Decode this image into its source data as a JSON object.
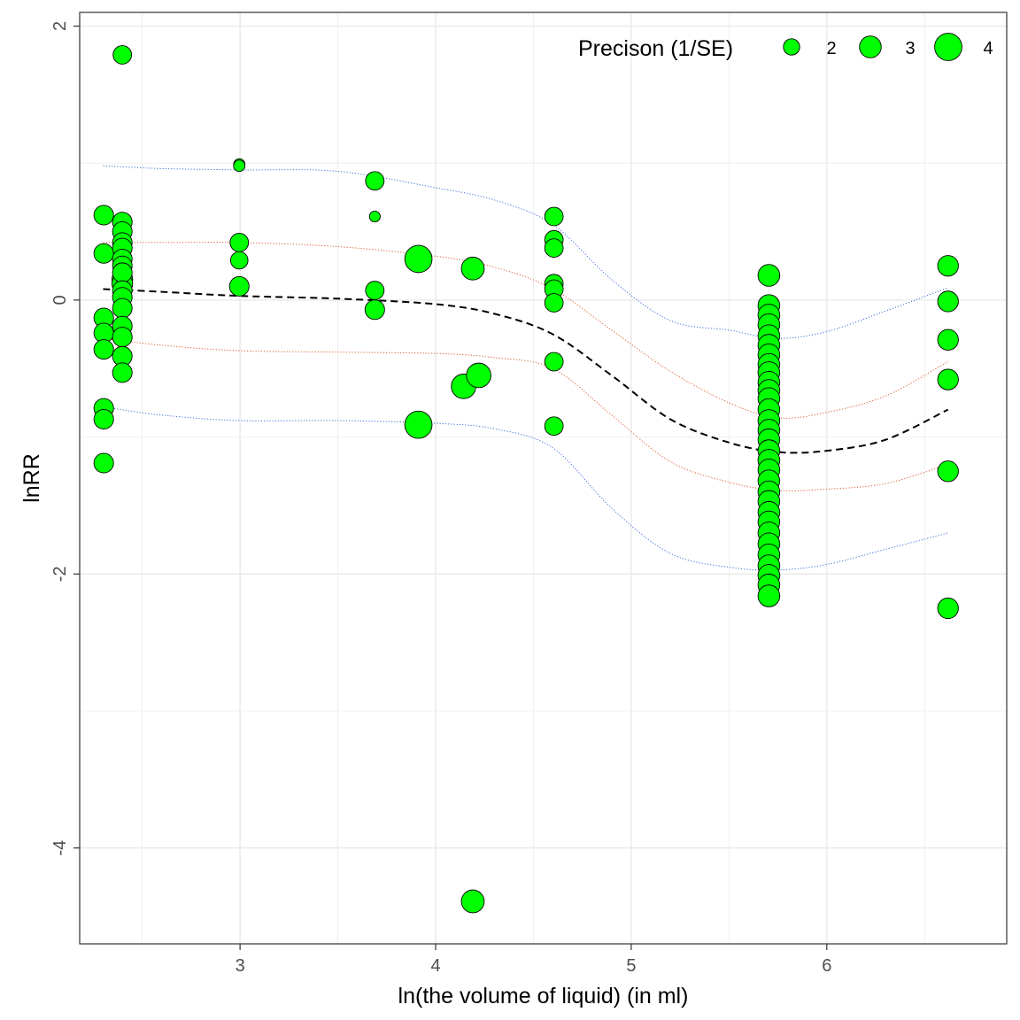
{
  "chart_data": {
    "type": "scatter",
    "title": "",
    "xlabel": "ln(the volume of liquid) (in ml)",
    "ylabel": "lnRR",
    "xlim": [
      2.18,
      6.92
    ],
    "ylim": [
      -4.7,
      2.1
    ],
    "x_ticks": [
      3,
      4,
      5,
      6
    ],
    "x_tick_labels": [
      "3",
      "4",
      "5",
      "6"
    ],
    "y_ticks": [
      -4,
      -2,
      0,
      2
    ],
    "y_tick_labels": [
      "-4",
      "-2",
      "0",
      "2"
    ],
    "grid": true,
    "legend": {
      "title": "Precison (1/SE)",
      "placement": "top-right",
      "entries": [
        {
          "label": "2",
          "precision": 2
        },
        {
          "label": "3",
          "precision": 3
        },
        {
          "label": "4",
          "precision": 4
        }
      ]
    },
    "colors": {
      "point_fill": "#00ff00",
      "point_stroke": "#000000",
      "fit_line": "#000000",
      "ci_band": "#d95f33",
      "pi_band": "#3a6fd8",
      "grid": "#ebebeb"
    },
    "points": [
      {
        "x": 2.303,
        "y": 0.62,
        "precision": 2.6
      },
      {
        "x": 2.303,
        "y": 0.34,
        "precision": 2.6
      },
      {
        "x": 2.303,
        "y": -0.13,
        "precision": 2.6
      },
      {
        "x": 2.303,
        "y": -0.24,
        "precision": 2.6
      },
      {
        "x": 2.303,
        "y": -0.36,
        "precision": 2.6
      },
      {
        "x": 2.303,
        "y": -0.79,
        "precision": 2.6
      },
      {
        "x": 2.303,
        "y": -0.87,
        "precision": 2.6
      },
      {
        "x": 2.303,
        "y": -1.19,
        "precision": 2.6
      },
      {
        "x": 2.398,
        "y": 1.79,
        "precision": 2.4
      },
      {
        "x": 2.398,
        "y": 0.57,
        "precision": 2.6
      },
      {
        "x": 2.398,
        "y": 0.5,
        "precision": 2.6
      },
      {
        "x": 2.398,
        "y": 0.42,
        "precision": 2.6
      },
      {
        "x": 2.398,
        "y": 0.38,
        "precision": 2.6
      },
      {
        "x": 2.398,
        "y": 0.3,
        "precision": 2.6
      },
      {
        "x": 2.398,
        "y": 0.25,
        "precision": 2.6
      },
      {
        "x": 2.398,
        "y": 0.2,
        "precision": 2.6
      },
      {
        "x": 2.398,
        "y": 0.15,
        "precision": 2.8
      },
      {
        "x": 2.398,
        "y": 0.12,
        "precision": 2.8
      },
      {
        "x": 2.398,
        "y": 0.07,
        "precision": 2.6
      },
      {
        "x": 2.398,
        "y": 0.02,
        "precision": 2.6
      },
      {
        "x": 2.398,
        "y": -0.06,
        "precision": 2.6
      },
      {
        "x": 2.398,
        "y": -0.19,
        "precision": 2.6
      },
      {
        "x": 2.398,
        "y": -0.27,
        "precision": 2.6
      },
      {
        "x": 2.398,
        "y": -0.41,
        "precision": 2.6
      },
      {
        "x": 2.398,
        "y": -0.53,
        "precision": 2.6
      },
      {
        "x": 2.996,
        "y": 0.99,
        "precision": 1.1
      },
      {
        "x": 2.996,
        "y": 0.98,
        "precision": 1.1
      },
      {
        "x": 2.996,
        "y": 0.42,
        "precision": 2.4
      },
      {
        "x": 2.996,
        "y": 0.29,
        "precision": 2.2
      },
      {
        "x": 2.996,
        "y": 0.1,
        "precision": 2.6
      },
      {
        "x": 3.689,
        "y": 0.87,
        "precision": 2.4
      },
      {
        "x": 3.689,
        "y": 0.61,
        "precision": 1.0
      },
      {
        "x": 3.689,
        "y": 0.07,
        "precision": 2.4
      },
      {
        "x": 3.689,
        "y": -0.07,
        "precision": 2.6
      },
      {
        "x": 3.912,
        "y": 0.3,
        "precision": 4.0
      },
      {
        "x": 3.912,
        "y": -0.91,
        "precision": 4.0
      },
      {
        "x": 4.143,
        "y": -0.63,
        "precision": 3.5
      },
      {
        "x": 4.19,
        "y": 0.23,
        "precision": 3.2
      },
      {
        "x": 4.19,
        "y": -4.39,
        "precision": 3.2
      },
      {
        "x": 4.22,
        "y": -0.55,
        "precision": 3.5
      },
      {
        "x": 4.605,
        "y": 0.61,
        "precision": 2.4
      },
      {
        "x": 4.605,
        "y": 0.44,
        "precision": 2.4
      },
      {
        "x": 4.605,
        "y": 0.38,
        "precision": 2.4
      },
      {
        "x": 4.605,
        "y": 0.12,
        "precision": 2.4
      },
      {
        "x": 4.605,
        "y": 0.08,
        "precision": 2.4
      },
      {
        "x": 4.605,
        "y": -0.02,
        "precision": 2.4
      },
      {
        "x": 4.605,
        "y": -0.45,
        "precision": 2.4
      },
      {
        "x": 4.605,
        "y": -0.92,
        "precision": 2.4
      },
      {
        "x": 5.704,
        "y": 0.18,
        "precision": 3.0
      },
      {
        "x": 5.704,
        "y": -0.04,
        "precision": 3.0
      },
      {
        "x": 5.704,
        "y": -0.11,
        "precision": 3.0
      },
      {
        "x": 5.704,
        "y": -0.18,
        "precision": 3.0
      },
      {
        "x": 5.704,
        "y": -0.26,
        "precision": 3.0
      },
      {
        "x": 5.704,
        "y": -0.33,
        "precision": 3.0
      },
      {
        "x": 5.704,
        "y": -0.4,
        "precision": 3.0
      },
      {
        "x": 5.704,
        "y": -0.47,
        "precision": 3.0
      },
      {
        "x": 5.704,
        "y": -0.53,
        "precision": 3.0
      },
      {
        "x": 5.704,
        "y": -0.6,
        "precision": 3.0
      },
      {
        "x": 5.704,
        "y": -0.66,
        "precision": 3.0
      },
      {
        "x": 5.704,
        "y": -0.72,
        "precision": 3.0
      },
      {
        "x": 5.704,
        "y": -0.8,
        "precision": 3.0
      },
      {
        "x": 5.704,
        "y": -0.88,
        "precision": 3.0
      },
      {
        "x": 5.704,
        "y": -0.95,
        "precision": 3.0
      },
      {
        "x": 5.704,
        "y": -1.02,
        "precision": 3.0
      },
      {
        "x": 5.704,
        "y": -1.1,
        "precision": 3.0
      },
      {
        "x": 5.704,
        "y": -1.17,
        "precision": 3.0
      },
      {
        "x": 5.704,
        "y": -1.24,
        "precision": 3.0
      },
      {
        "x": 5.704,
        "y": -1.32,
        "precision": 3.0
      },
      {
        "x": 5.704,
        "y": -1.4,
        "precision": 3.0
      },
      {
        "x": 5.704,
        "y": -1.47,
        "precision": 3.0
      },
      {
        "x": 5.704,
        "y": -1.55,
        "precision": 3.0
      },
      {
        "x": 5.704,
        "y": -1.62,
        "precision": 3.0
      },
      {
        "x": 5.704,
        "y": -1.7,
        "precision": 3.0
      },
      {
        "x": 5.704,
        "y": -1.78,
        "precision": 3.0
      },
      {
        "x": 5.704,
        "y": -1.86,
        "precision": 3.0
      },
      {
        "x": 5.704,
        "y": -1.94,
        "precision": 3.0
      },
      {
        "x": 5.704,
        "y": -2.01,
        "precision": 3.0
      },
      {
        "x": 5.704,
        "y": -2.08,
        "precision": 3.0
      },
      {
        "x": 5.704,
        "y": -2.16,
        "precision": 3.0
      },
      {
        "x": 6.62,
        "y": 0.25,
        "precision": 2.8
      },
      {
        "x": 6.62,
        "y": -0.01,
        "precision": 2.8
      },
      {
        "x": 6.62,
        "y": -0.29,
        "precision": 2.8
      },
      {
        "x": 6.62,
        "y": -0.58,
        "precision": 2.8
      },
      {
        "x": 6.62,
        "y": -1.25,
        "precision": 2.8
      },
      {
        "x": 6.62,
        "y": -2.25,
        "precision": 2.8
      }
    ],
    "fit_curve": {
      "x": [
        2.3,
        2.6,
        3.0,
        3.5,
        4.0,
        4.3,
        4.6,
        4.9,
        5.2,
        5.5,
        5.75,
        6.0,
        6.3,
        6.62
      ],
      "y": [
        0.08,
        0.06,
        0.03,
        0.01,
        -0.03,
        -0.1,
        -0.25,
        -0.55,
        -0.87,
        -1.04,
        -1.11,
        -1.1,
        -1.02,
        -0.8
      ]
    },
    "ci_upper": {
      "x": [
        2.3,
        2.6,
        3.0,
        3.5,
        4.0,
        4.3,
        4.6,
        4.9,
        5.2,
        5.5,
        5.75,
        6.0,
        6.3,
        6.62
      ],
      "y": [
        0.42,
        0.42,
        0.42,
        0.39,
        0.32,
        0.24,
        0.08,
        -0.22,
        -0.52,
        -0.75,
        -0.86,
        -0.82,
        -0.7,
        -0.45
      ]
    },
    "ci_lower": {
      "x": [
        2.3,
        2.6,
        3.0,
        3.5,
        4.0,
        4.3,
        4.6,
        4.9,
        5.2,
        5.5,
        5.75,
        6.0,
        6.3,
        6.62
      ],
      "y": [
        -0.28,
        -0.33,
        -0.37,
        -0.38,
        -0.39,
        -0.42,
        -0.5,
        -0.84,
        -1.18,
        -1.33,
        -1.39,
        -1.38,
        -1.34,
        -1.2
      ]
    },
    "pi_upper": {
      "x": [
        2.3,
        2.6,
        3.0,
        3.5,
        4.0,
        4.3,
        4.6,
        4.9,
        5.2,
        5.5,
        5.75,
        6.0,
        6.3,
        6.62
      ],
      "y": [
        0.98,
        0.96,
        0.95,
        0.94,
        0.82,
        0.73,
        0.55,
        0.15,
        -0.15,
        -0.22,
        -0.28,
        -0.23,
        -0.08,
        0.09
      ]
    },
    "pi_lower": {
      "x": [
        2.3,
        2.6,
        3.0,
        3.5,
        4.0,
        4.3,
        4.6,
        4.9,
        5.2,
        5.5,
        5.75,
        6.0,
        6.3,
        6.62
      ],
      "y": [
        -0.78,
        -0.84,
        -0.88,
        -0.88,
        -0.9,
        -0.94,
        -1.08,
        -1.52,
        -1.85,
        -1.95,
        -1.97,
        -1.93,
        -1.82,
        -1.7
      ]
    }
  }
}
